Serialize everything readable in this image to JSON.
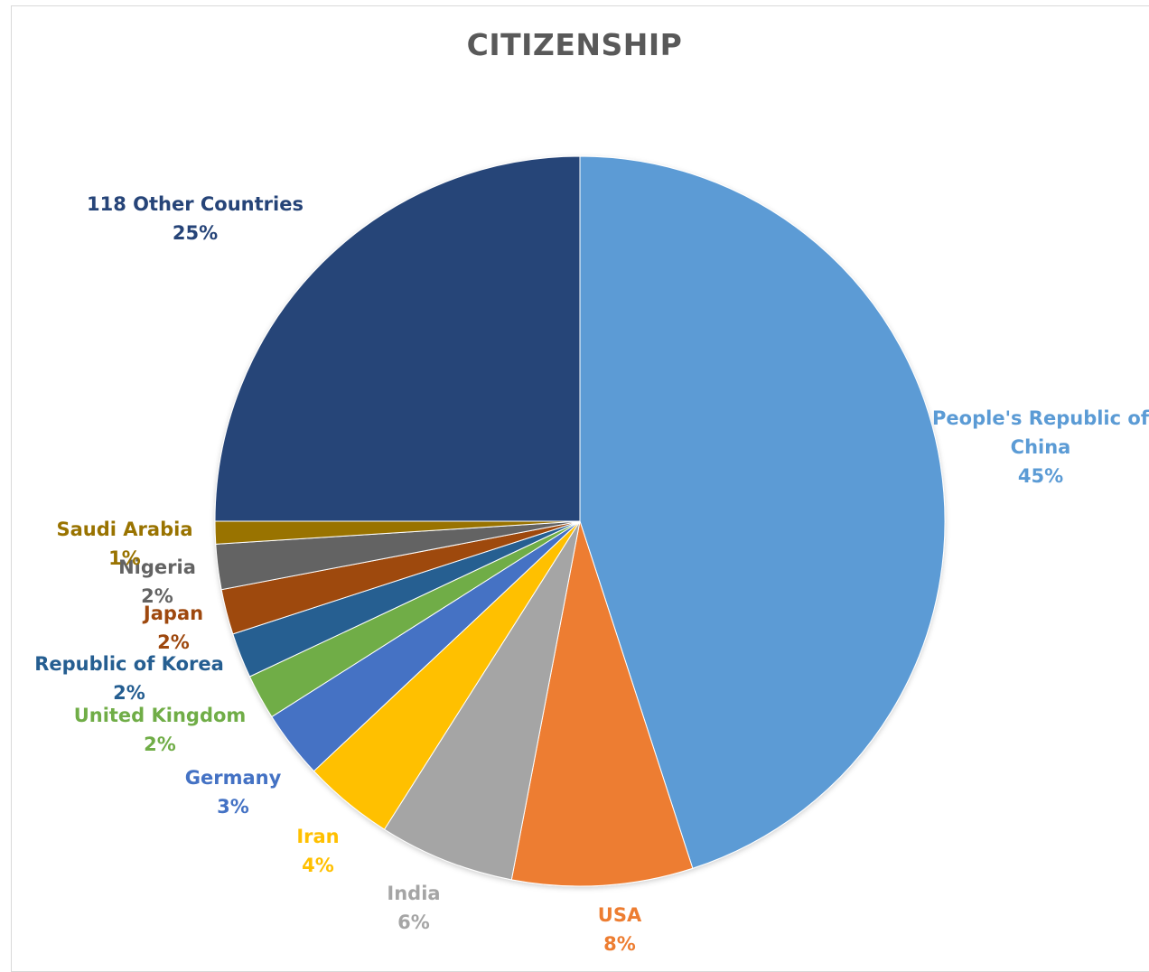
{
  "chart_data": {
    "type": "pie",
    "title": "CITIZENSHIP",
    "slices": [
      {
        "name": "People's Republic of China",
        "label_lines": [
          "People's Republic of",
          "China"
        ],
        "percent_label": "45%",
        "value": 45,
        "color": "#5b9bd5"
      },
      {
        "name": "USA",
        "label_lines": [
          "USA"
        ],
        "percent_label": "8%",
        "value": 8,
        "color": "#ed7d31"
      },
      {
        "name": "India",
        "label_lines": [
          "India"
        ],
        "percent_label": "6%",
        "value": 6,
        "color": "#a5a5a5"
      },
      {
        "name": "Iran",
        "label_lines": [
          "Iran"
        ],
        "percent_label": "4%",
        "value": 4,
        "color": "#ffc000"
      },
      {
        "name": "Germany",
        "label_lines": [
          "Germany"
        ],
        "percent_label": "3%",
        "value": 3,
        "color": "#4472c4"
      },
      {
        "name": "United Kingdom",
        "label_lines": [
          "United Kingdom"
        ],
        "percent_label": "2%",
        "value": 2,
        "color": "#70ad47"
      },
      {
        "name": "Republic of Korea",
        "label_lines": [
          "Republic of Korea"
        ],
        "percent_label": "2%",
        "value": 2,
        "color": "#255e91"
      },
      {
        "name": "Japan",
        "label_lines": [
          "Japan"
        ],
        "percent_label": "2%",
        "value": 2,
        "color": "#9e480e"
      },
      {
        "name": "Nigeria",
        "label_lines": [
          "Nigeria"
        ],
        "percent_label": "2%",
        "value": 2,
        "color": "#636363"
      },
      {
        "name": "Saudi Arabia",
        "label_lines": [
          "Saudi Arabia"
        ],
        "percent_label": "1%",
        "value": 1,
        "color": "#997300"
      },
      {
        "name": "118 Other Countries",
        "label_lines": [
          "118 Other Countries"
        ],
        "percent_label": "25%",
        "value": 25,
        "color": "#264478"
      }
    ],
    "start_angle_deg": 0,
    "direction": "clockwise",
    "legend": "none",
    "data_labels": "outside"
  }
}
